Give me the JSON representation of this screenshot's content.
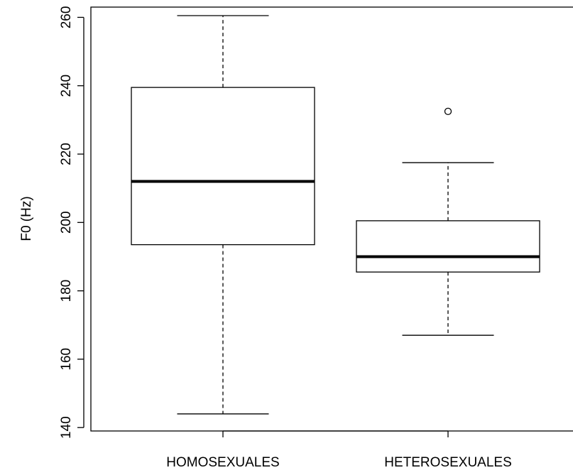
{
  "chart_data": {
    "type": "boxplot",
    "title": "",
    "xlabel": "",
    "ylabel": "F0 (Hz)",
    "ylim": [
      139,
      263
    ],
    "yticks": [
      140,
      160,
      180,
      200,
      220,
      240,
      260
    ],
    "categories": [
      "HOMOSEXUALES",
      "HETEROSEXUALES"
    ],
    "boxes": [
      {
        "category": "HOMOSEXUALES",
        "whisker_low": 144,
        "q1": 193.5,
        "median": 212,
        "q3": 239.5,
        "whisker_high": 260.5,
        "outliers": []
      },
      {
        "category": "HETEROSEXUALES",
        "whisker_low": 167,
        "q1": 185.5,
        "median": 190,
        "q3": 200.5,
        "whisker_high": 217.5,
        "outliers": [
          232.5
        ]
      }
    ],
    "grid": false,
    "legend": "none"
  }
}
